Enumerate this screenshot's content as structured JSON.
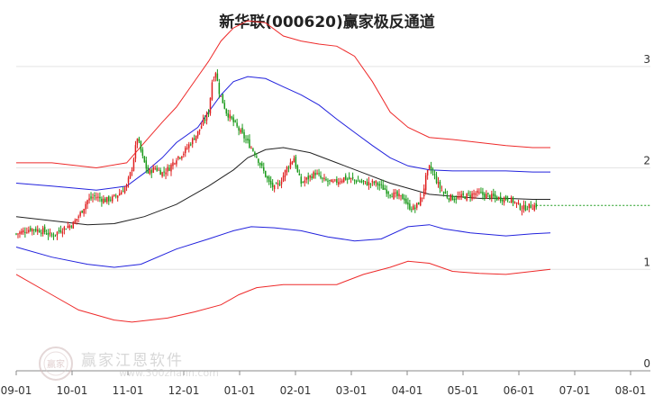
{
  "title": "新华联(000620)赢家极反通道",
  "watermark": {
    "brand": "赢家江恩软件",
    "url": "www.300zhann.com",
    "logo_text": "赢家"
  },
  "colors": {
    "up": "#e02020",
    "down": "#1a9a1a",
    "upper_band": "#ee2a2a",
    "mid_band": "#2222dd",
    "center": "#222222",
    "grid": "#e4e4e4",
    "axis": "#888888",
    "last_price": "#1a9a1a"
  },
  "chart_data": {
    "type": "candlestick",
    "title": "新华联(000620)赢家极反通道",
    "x_ticks": [
      "09-01",
      "10-01",
      "11-01",
      "12-01",
      "01-01",
      "02-01",
      "03-01",
      "04-01",
      "05-01",
      "06-01",
      "07-01",
      "08-01"
    ],
    "y_ticks": [
      "0",
      "1",
      "2",
      "3"
    ],
    "ylim": [
      0,
      3.3
    ],
    "grid": true,
    "last_price": 1.63,
    "series": [
      {
        "name": "upper_outer",
        "points": [
          [
            0,
            2.05
          ],
          [
            20,
            2.05
          ],
          [
            45,
            2.0
          ],
          [
            62,
            2.05
          ],
          [
            72,
            2.25
          ],
          [
            82,
            2.45
          ],
          [
            90,
            2.6
          ],
          [
            102,
            2.9
          ],
          [
            108,
            3.05
          ],
          [
            115,
            3.25
          ],
          [
            122,
            3.38
          ],
          [
            130,
            3.45
          ],
          [
            140,
            3.43
          ],
          [
            150,
            3.3
          ],
          [
            160,
            3.25
          ],
          [
            170,
            3.22
          ],
          [
            180,
            3.2
          ],
          [
            190,
            3.1
          ],
          [
            200,
            2.85
          ],
          [
            210,
            2.55
          ],
          [
            220,
            2.4
          ],
          [
            232,
            2.3
          ],
          [
            245,
            2.28
          ],
          [
            260,
            2.25
          ],
          [
            275,
            2.22
          ],
          [
            290,
            2.2
          ],
          [
            300,
            2.2
          ]
        ]
      },
      {
        "name": "mid_upper",
        "points": [
          [
            0,
            1.85
          ],
          [
            20,
            1.82
          ],
          [
            45,
            1.78
          ],
          [
            62,
            1.82
          ],
          [
            72,
            1.95
          ],
          [
            82,
            2.1
          ],
          [
            90,
            2.25
          ],
          [
            102,
            2.4
          ],
          [
            108,
            2.55
          ],
          [
            115,
            2.72
          ],
          [
            122,
            2.85
          ],
          [
            130,
            2.9
          ],
          [
            140,
            2.88
          ],
          [
            150,
            2.8
          ],
          [
            160,
            2.72
          ],
          [
            170,
            2.62
          ],
          [
            180,
            2.48
          ],
          [
            190,
            2.35
          ],
          [
            200,
            2.22
          ],
          [
            210,
            2.1
          ],
          [
            220,
            2.02
          ],
          [
            232,
            1.98
          ],
          [
            245,
            1.97
          ],
          [
            260,
            1.97
          ],
          [
            275,
            1.97
          ],
          [
            290,
            1.96
          ],
          [
            300,
            1.96
          ]
        ]
      },
      {
        "name": "center",
        "points": [
          [
            0,
            1.52
          ],
          [
            20,
            1.48
          ],
          [
            40,
            1.44
          ],
          [
            55,
            1.45
          ],
          [
            72,
            1.52
          ],
          [
            90,
            1.64
          ],
          [
            108,
            1.82
          ],
          [
            122,
            1.98
          ],
          [
            130,
            2.1
          ],
          [
            140,
            2.18
          ],
          [
            150,
            2.2
          ],
          [
            165,
            2.15
          ],
          [
            180,
            2.05
          ],
          [
            195,
            1.95
          ],
          [
            210,
            1.85
          ],
          [
            220,
            1.8
          ],
          [
            232,
            1.74
          ],
          [
            245,
            1.72
          ],
          [
            260,
            1.7
          ],
          [
            275,
            1.7
          ],
          [
            290,
            1.69
          ],
          [
            300,
            1.69
          ]
        ]
      },
      {
        "name": "mid_lower",
        "points": [
          [
            0,
            1.22
          ],
          [
            20,
            1.12
          ],
          [
            40,
            1.05
          ],
          [
            55,
            1.02
          ],
          [
            70,
            1.05
          ],
          [
            90,
            1.2
          ],
          [
            108,
            1.3
          ],
          [
            122,
            1.38
          ],
          [
            132,
            1.42
          ],
          [
            145,
            1.41
          ],
          [
            160,
            1.38
          ],
          [
            175,
            1.32
          ],
          [
            190,
            1.28
          ],
          [
            205,
            1.3
          ],
          [
            220,
            1.42
          ],
          [
            232,
            1.44
          ],
          [
            240,
            1.4
          ],
          [
            255,
            1.36
          ],
          [
            275,
            1.33
          ],
          [
            290,
            1.35
          ],
          [
            300,
            1.36
          ]
        ]
      },
      {
        "name": "lower_outer",
        "points": [
          [
            0,
            0.95
          ],
          [
            20,
            0.75
          ],
          [
            35,
            0.6
          ],
          [
            45,
            0.55
          ],
          [
            55,
            0.5
          ],
          [
            65,
            0.48
          ],
          [
            75,
            0.5
          ],
          [
            85,
            0.52
          ],
          [
            100,
            0.58
          ],
          [
            115,
            0.65
          ],
          [
            125,
            0.75
          ],
          [
            135,
            0.82
          ],
          [
            150,
            0.85
          ],
          [
            165,
            0.85
          ],
          [
            180,
            0.85
          ],
          [
            195,
            0.95
          ],
          [
            210,
            1.02
          ],
          [
            220,
            1.08
          ],
          [
            232,
            1.06
          ],
          [
            245,
            0.98
          ],
          [
            260,
            0.96
          ],
          [
            275,
            0.95
          ],
          [
            290,
            0.98
          ],
          [
            300,
            1.0
          ]
        ]
      }
    ],
    "close_path": [
      [
        0,
        1.35
      ],
      [
        8,
        1.4
      ],
      [
        15,
        1.38
      ],
      [
        20,
        1.33
      ],
      [
        26,
        1.4
      ],
      [
        32,
        1.45
      ],
      [
        36,
        1.55
      ],
      [
        40,
        1.68
      ],
      [
        44,
        1.72
      ],
      [
        50,
        1.68
      ],
      [
        54,
        1.7
      ],
      [
        58,
        1.75
      ],
      [
        62,
        1.82
      ],
      [
        65,
        2.0
      ],
      [
        68,
        2.3
      ],
      [
        71,
        2.1
      ],
      [
        74,
        1.95
      ],
      [
        78,
        2.0
      ],
      [
        82,
        1.95
      ],
      [
        86,
        2.0
      ],
      [
        90,
        2.1
      ],
      [
        94,
        2.15
      ],
      [
        98,
        2.25
      ],
      [
        102,
        2.35
      ],
      [
        105,
        2.45
      ],
      [
        108,
        2.55
      ],
      [
        110,
        2.85
      ],
      [
        112,
        2.95
      ],
      [
        114,
        2.75
      ],
      [
        118,
        2.55
      ],
      [
        122,
        2.45
      ],
      [
        126,
        2.35
      ],
      [
        130,
        2.25
      ],
      [
        134,
        2.15
      ],
      [
        138,
        2.0
      ],
      [
        142,
        1.85
      ],
      [
        145,
        1.8
      ],
      [
        148,
        1.85
      ],
      [
        152,
        2.0
      ],
      [
        156,
        2.1
      ],
      [
        158,
        1.95
      ],
      [
        160,
        1.85
      ],
      [
        164,
        1.9
      ],
      [
        168,
        1.95
      ],
      [
        172,
        1.88
      ],
      [
        178,
        1.85
      ],
      [
        184,
        1.9
      ],
      [
        190,
        1.88
      ],
      [
        196,
        1.85
      ],
      [
        202,
        1.85
      ],
      [
        206,
        1.8
      ],
      [
        210,
        1.75
      ],
      [
        214,
        1.72
      ],
      [
        218,
        1.7
      ],
      [
        220,
        1.62
      ],
      [
        224,
        1.6
      ],
      [
        228,
        1.72
      ],
      [
        230,
        1.9
      ],
      [
        232,
        2.0
      ],
      [
        234,
        1.95
      ],
      [
        238,
        1.8
      ],
      [
        242,
        1.72
      ],
      [
        246,
        1.7
      ],
      [
        252,
        1.72
      ],
      [
        258,
        1.75
      ],
      [
        264,
        1.73
      ],
      [
        270,
        1.7
      ],
      [
        276,
        1.7
      ],
      [
        280,
        1.66
      ],
      [
        284,
        1.6
      ],
      [
        288,
        1.62
      ],
      [
        292,
        1.63
      ]
    ]
  }
}
